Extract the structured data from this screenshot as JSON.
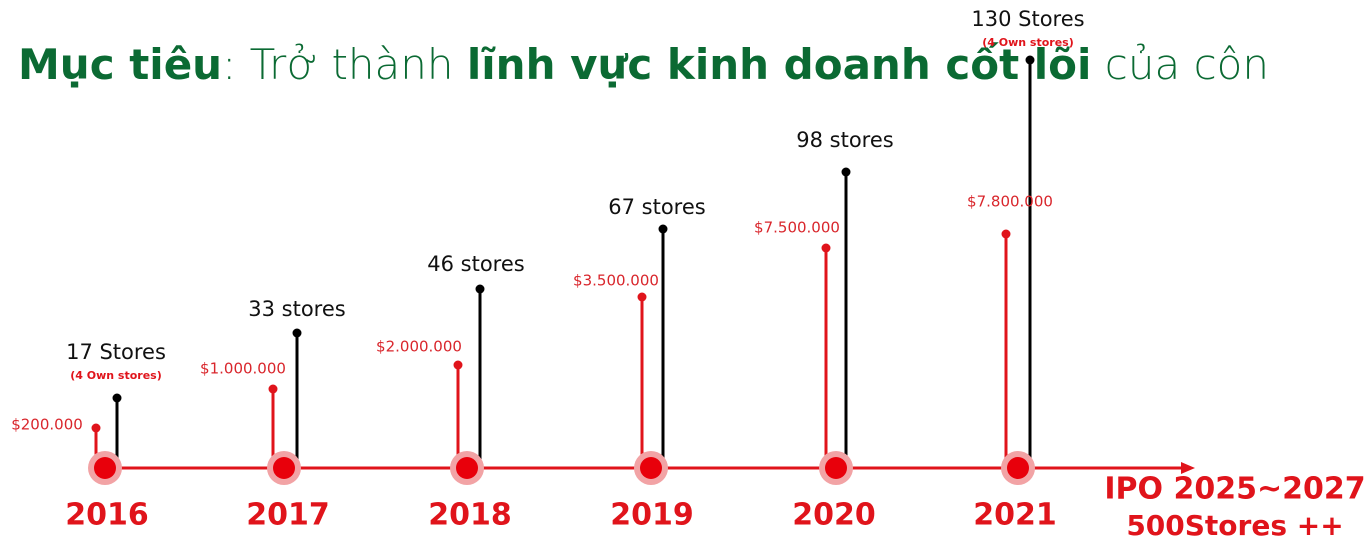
{
  "header": {
    "title": {
      "label": "Mục tiêu",
      "text": ": Trở thành ",
      "highlight": "lĩnh vực kinh doanh cốt lõi",
      "rest": " của côn"
    }
  },
  "timeline": [
    {
      "year": "2016",
      "revenue": "$200.000",
      "stores": "17 Stores",
      "note": "(4 Own stores)"
    },
    {
      "year": "2017",
      "revenue": "$1.000.000",
      "stores": "33 stores"
    },
    {
      "year": "2018",
      "revenue": "$2.000.000",
      "stores": "46 stores"
    },
    {
      "year": "2019",
      "revenue": "$3.500.000",
      "stores": "67 stores"
    },
    {
      "year": "2020",
      "revenue": "$7.500.000",
      "stores": "98 stores"
    },
    {
      "year": "2021",
      "revenue": "$7.800.000",
      "stores": "130 Stores",
      "note": "(4 Own stores)"
    }
  ],
  "goal": {
    "line1": "IPO 2025~2027",
    "line2": "500Stores ++"
  }
}
